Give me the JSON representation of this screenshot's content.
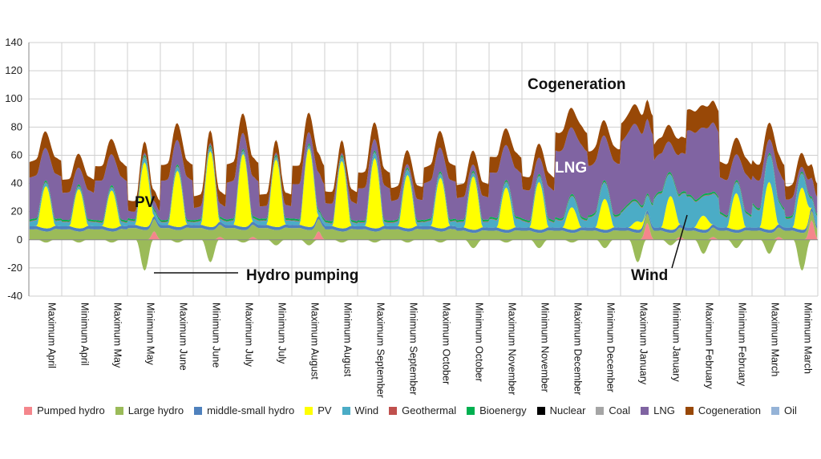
{
  "chart_data": {
    "type": "area",
    "stacked": true,
    "ylim": [
      -40,
      140
    ],
    "yticks": [
      -40,
      -20,
      0,
      20,
      40,
      60,
      80,
      100,
      120,
      140
    ],
    "grid": true,
    "legend_position": "bottom",
    "points_per_day": 24,
    "categories": [
      "Maximum April",
      "Minimum April",
      "Maximum May",
      "Minimum May",
      "Maximum June",
      "Minimum June",
      "Maximum July",
      "Minimum July",
      "Maximum August",
      "Minimum August",
      "Maximum September",
      "Minimum September",
      "Maximum October",
      "Minimum October",
      "Maximum November",
      "Minimum November",
      "Maximum December",
      "Minimum December",
      "Maximum January",
      "Minimum January",
      "Maximum February",
      "Minimum February",
      "Maximum March",
      "Minimum March"
    ],
    "series": [
      {
        "name": "Pumped hydro",
        "color": "#f4868c"
      },
      {
        "name": "Large hydro",
        "color": "#9bbb59"
      },
      {
        "name": "middle-small hydro",
        "color": "#4f81bd"
      },
      {
        "name": "PV",
        "color": "#ffff00"
      },
      {
        "name": "Wind",
        "color": "#4bacc6"
      },
      {
        "name": "Geothermal",
        "color": "#c0504d"
      },
      {
        "name": "Bioenergy",
        "color": "#00b050"
      },
      {
        "name": "Nuclear",
        "color": "#000000"
      },
      {
        "name": "Coal",
        "color": "#a5a5a5"
      },
      {
        "name": "LNG",
        "color": "#8064a2"
      },
      {
        "name": "Cogeneration",
        "color": "#984807"
      },
      {
        "name": "Oil",
        "color": "#95b3d7"
      }
    ],
    "days": [
      {
        "hydro": 8,
        "pv": 30,
        "wind": 4,
        "lng": 34,
        "cogen": 12,
        "pump": -2,
        "pumpGen": 0
      },
      {
        "hydro": 8,
        "pv": 28,
        "wind": 3,
        "lng": 22,
        "cogen": 10,
        "pump": -2,
        "pumpGen": 0
      },
      {
        "hydro": 8,
        "pv": 27,
        "wind": 3,
        "lng": 32,
        "cogen": 11,
        "pump": -2,
        "pumpGen": 0
      },
      {
        "hydro": 9,
        "pv": 46,
        "wind": 4,
        "lng": 6,
        "cogen": 8,
        "pump": -22,
        "pumpGen": 6
      },
      {
        "hydro": 9,
        "pv": 40,
        "wind": 3,
        "lng": 32,
        "cogen": 12,
        "pump": -2,
        "pumpGen": 0
      },
      {
        "hydro": 9,
        "pv": 54,
        "wind": 3,
        "lng": 10,
        "cogen": 9,
        "pump": -16,
        "pumpGen": 2
      },
      {
        "hydro": 9,
        "pv": 52,
        "wind": 3,
        "lng": 30,
        "cogen": 14,
        "pump": -2,
        "pumpGen": 2
      },
      {
        "hydro": 9,
        "pv": 48,
        "wind": 3,
        "lng": 10,
        "cogen": 9,
        "pump": -4,
        "pumpGen": 0
      },
      {
        "hydro": 9,
        "pv": 56,
        "wind": 3,
        "lng": 28,
        "cogen": 14,
        "pump": -4,
        "pumpGen": 6
      },
      {
        "hydro": 8,
        "pv": 48,
        "wind": 3,
        "lng": 14,
        "cogen": 9,
        "pump": -2,
        "pumpGen": 0
      },
      {
        "hydro": 8,
        "pv": 50,
        "wind": 4,
        "lng": 26,
        "cogen": 12,
        "pump": -2,
        "pumpGen": 0
      },
      {
        "hydro": 8,
        "pv": 38,
        "wind": 4,
        "lng": 16,
        "cogen": 10,
        "pump": -2,
        "pumpGen": 0
      },
      {
        "hydro": 8,
        "pv": 36,
        "wind": 4,
        "lng": 30,
        "cogen": 12,
        "pump": -2,
        "pumpGen": 0
      },
      {
        "hydro": 7,
        "pv": 38,
        "wind": 4,
        "lng": 18,
        "cogen": 10,
        "pump": -6,
        "pumpGen": 0
      },
      {
        "hydro": 7,
        "pv": 30,
        "wind": 6,
        "lng": 36,
        "cogen": 12,
        "pump": -2,
        "pumpGen": 0
      },
      {
        "hydro": 7,
        "pv": 34,
        "wind": 5,
        "lng": 24,
        "cogen": 10,
        "pump": -6,
        "pumpGen": 0
      },
      {
        "hydro": 7,
        "pv": 16,
        "wind": 8,
        "lng": 54,
        "cogen": 14,
        "pump": -2,
        "pumpGen": 0
      },
      {
        "hydro": 7,
        "pv": 22,
        "wind": 12,
        "lng": 40,
        "cogen": 11,
        "pump": -6,
        "pumpGen": 0
      },
      {
        "hydro": 7,
        "pv": 6,
        "wind": 16,
        "lng": 56,
        "cogen": 14,
        "pump": -16,
        "pumpGen": 12
      },
      {
        "hydro": 7,
        "pv": 24,
        "wind": 24,
        "lng": 30,
        "cogen": 12,
        "pump": -4,
        "pumpGen": 2
      },
      {
        "hydro": 7,
        "pv": 10,
        "wind": 22,
        "lng": 52,
        "cogen": 16,
        "pump": -10,
        "pumpGen": 2
      },
      {
        "hydro": 7,
        "pv": 26,
        "wind": 10,
        "lng": 28,
        "cogen": 12,
        "pump": -6,
        "pumpGen": 0
      },
      {
        "hydro": 7,
        "pv": 34,
        "wind": 20,
        "lng": 22,
        "cogen": 12,
        "pump": -10,
        "pumpGen": 2
      },
      {
        "hydro": 7,
        "pv": 30,
        "wind": 10,
        "lng": 14,
        "cogen": 10,
        "pump": -22,
        "pumpGen": 14
      }
    ],
    "annotations": [
      "Cogeneration",
      "LNG",
      "PV",
      "Hydro pumping",
      "Wind"
    ]
  }
}
